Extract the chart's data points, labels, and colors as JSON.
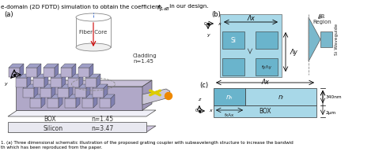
{
  "bg_color": "#ffffff",
  "fig_width": 4.74,
  "fig_height": 1.97,
  "dpi": 100,
  "top_text": "e-domain (2D FDTD) simulation to obtain the coefficient ",
  "top_text2": " in our design.",
  "caption1": "1. (a) Three dimensional schematic illustration of the proposed grating coupler with subwavelength structure to increase the bandwid",
  "caption2": "th which has been reproduced from the paper.",
  "panel_a_label": "(a)",
  "panel_b_label": "(b)",
  "panel_c_label": "(c)",
  "cladding_text": "Cladding\nn=1.45",
  "fiber_text": "Fiber Core",
  "box_text": "BOX",
  "box_n": "n=1.45",
  "silicon_text": "Silicon",
  "silicon_n": "n=3.47",
  "ar_text": "AR\nRegion",
  "si_text": "Si",
  "waveguide_text": "Si Waveguide",
  "lambda_x_text": "Λx",
  "lambda_y_text": "Λy",
  "fy_text": "fyΛy",
  "nh_text": "nₕ",
  "nl_text": "nₗ",
  "dim_340": "340nm",
  "dim_2um": "2μm",
  "fxax_text": "fxAx",
  "box_c_text": "BOX",
  "light_blue": "#a8d8e8",
  "mid_blue": "#6ab4cc",
  "dark_blue": "#4a90b8",
  "pillar_top": "#a0a0c8",
  "pillar_front": "#b8b0d0",
  "pillar_side": "#8080b0",
  "platform_top": "#c8c0d8",
  "platform_side": "#b0a8c8",
  "box_fill": "#e8e8f0",
  "silicon_fill": "#d0c8e0",
  "waveguide_fill": "#7ab8cc"
}
